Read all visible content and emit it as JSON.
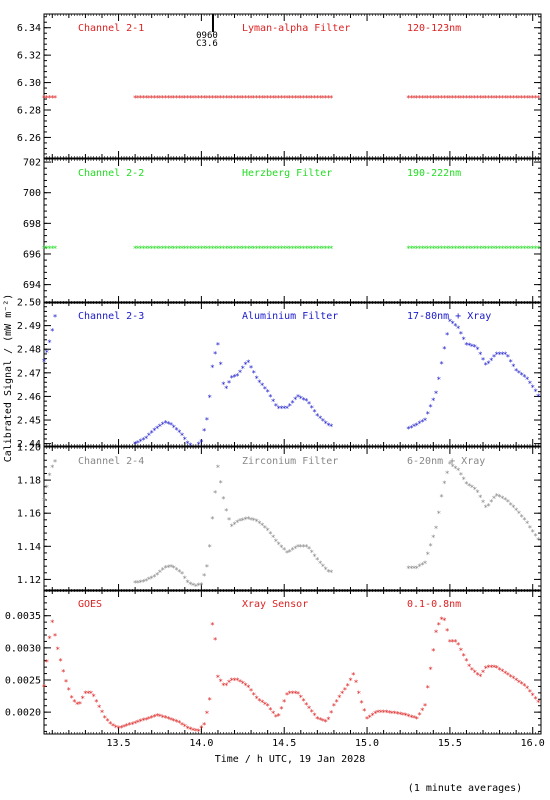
{
  "figure": {
    "ylabel": "Calibrated Signal / (mW m⁻²)",
    "xlabel": "Time / h UTC, 19 Jan 2028",
    "footnote": "(1 minute averages)"
  },
  "flare_marker": {
    "x": 14.07,
    "label_top": "0960",
    "label_bottom": "C3.6"
  },
  "chart_data": [
    {
      "type": "scatter",
      "channel": "Channel 2-1",
      "filter": "Lyman-alpha Filter",
      "band": "120-123nm",
      "color": "#dd2222",
      "xlim": [
        13.05,
        16.05
      ],
      "ylim": [
        6.245,
        6.35
      ],
      "yticks": [
        6.26,
        6.28,
        6.3,
        6.32,
        6.34
      ],
      "ytick_labels": [
        "6.26",
        "6.28",
        "6.30",
        "6.32",
        "6.34"
      ],
      "gaps": [
        [
          13.12,
          13.6
        ],
        [
          14.8,
          15.24
        ]
      ],
      "x": [
        13.05,
        13.12,
        13.6,
        14.8,
        15.24,
        16.05
      ],
      "y": [
        6.289,
        6.289,
        6.289,
        6.289,
        6.289,
        6.289
      ]
    },
    {
      "type": "scatter",
      "channel": "Channel 2-2",
      "filter": "Herzberg Filter",
      "band": "190-222nm",
      "color": "#22dd22",
      "xlim": [
        13.05,
        16.05
      ],
      "ylim": [
        692.8,
        702.2
      ],
      "yticks": [
        694,
        696,
        698,
        700,
        702
      ],
      "ytick_labels": [
        "694",
        "696",
        "698",
        "700",
        "702"
      ],
      "gaps": [
        [
          13.12,
          13.6
        ],
        [
          14.8,
          15.24
        ]
      ],
      "x": [
        13.05,
        13.12,
        13.6,
        14.8,
        15.24,
        16.05
      ],
      "y": [
        696.4,
        696.4,
        696.4,
        696.4,
        696.4,
        696.4
      ]
    },
    {
      "type": "scatter",
      "channel": "Channel 2-3",
      "filter": "Aluminium Filter",
      "band": "17-80nm + Xray",
      "color": "#1a1acc",
      "xlim": [
        13.05,
        16.05
      ],
      "ylim": [
        2.439,
        2.5
      ],
      "yticks": [
        2.44,
        2.45,
        2.46,
        2.47,
        2.48,
        2.49,
        2.5
      ],
      "ytick_labels": [
        "2.44",
        "2.45",
        "2.46",
        "2.47",
        "2.48",
        "2.49",
        "2.50"
      ],
      "gaps": [
        [
          13.12,
          13.6
        ],
        [
          14.8,
          15.24
        ]
      ],
      "x": [
        13.05,
        13.08,
        13.1,
        13.12,
        13.6,
        13.66,
        13.72,
        13.78,
        13.82,
        13.88,
        13.92,
        13.96,
        14.0,
        14.04,
        14.07,
        14.1,
        14.14,
        14.18,
        14.22,
        14.28,
        14.34,
        14.4,
        14.46,
        14.52,
        14.58,
        14.64,
        14.7,
        14.76,
        14.8,
        15.24,
        15.3,
        15.35,
        15.42,
        15.46,
        15.5,
        15.55,
        15.6,
        15.66,
        15.72,
        15.78,
        15.84,
        15.9,
        15.96,
        16.02,
        16.05
      ],
      "y": [
        2.475,
        2.482,
        2.488,
        2.495,
        2.44,
        2.442,
        2.446,
        2.449,
        2.448,
        2.444,
        2.44,
        2.438,
        2.441,
        2.452,
        2.475,
        2.482,
        2.462,
        2.468,
        2.469,
        2.475,
        2.467,
        2.462,
        2.455,
        2.455,
        2.46,
        2.458,
        2.452,
        2.448,
        2.447,
        2.446,
        2.448,
        2.45,
        2.462,
        2.478,
        2.492,
        2.489,
        2.482,
        2.481,
        2.473,
        2.478,
        2.478,
        2.471,
        2.468,
        2.462,
        2.458
      ]
    },
    {
      "type": "scatter",
      "channel": "Channel 2-4",
      "filter": "Zirconium Filter",
      "band": "6-20nm + Xray",
      "color": "#888888",
      "xlim": [
        13.05,
        16.05
      ],
      "ylim": [
        1.113,
        1.2
      ],
      "yticks": [
        1.12,
        1.14,
        1.16,
        1.18,
        1.2
      ],
      "ytick_labels": [
        "1.12",
        "1.14",
        "1.16",
        "1.18",
        "1.20"
      ],
      "gaps": [
        [
          13.12,
          13.6
        ],
        [
          14.8,
          15.24
        ]
      ],
      "x": [
        13.05,
        13.08,
        13.1,
        13.12,
        13.6,
        13.66,
        13.72,
        13.78,
        13.82,
        13.88,
        13.92,
        13.96,
        14.0,
        14.04,
        14.07,
        14.1,
        14.14,
        14.18,
        14.22,
        14.28,
        14.34,
        14.4,
        14.46,
        14.52,
        14.58,
        14.64,
        14.7,
        14.76,
        14.8,
        15.24,
        15.3,
        15.35,
        15.42,
        15.46,
        15.5,
        15.55,
        15.6,
        15.66,
        15.72,
        15.78,
        15.84,
        15.9,
        15.96,
        16.02,
        16.05
      ],
      "y": [
        1.168,
        1.182,
        1.188,
        1.192,
        1.118,
        1.119,
        1.122,
        1.127,
        1.128,
        1.124,
        1.118,
        1.116,
        1.117,
        1.13,
        1.16,
        1.188,
        1.165,
        1.152,
        1.155,
        1.157,
        1.155,
        1.15,
        1.142,
        1.136,
        1.14,
        1.14,
        1.132,
        1.125,
        1.124,
        1.127,
        1.127,
        1.13,
        1.152,
        1.176,
        1.19,
        1.186,
        1.178,
        1.174,
        1.163,
        1.171,
        1.168,
        1.162,
        1.155,
        1.146,
        1.142
      ]
    },
    {
      "type": "scatter",
      "channel": "GOES",
      "filter": "Xray Sensor",
      "band": "0.1-0.8nm",
      "color": "#dd2222",
      "xlim": [
        13.05,
        16.05
      ],
      "ylim": [
        0.00166,
        0.0039
      ],
      "yticks": [
        0.002,
        0.0025,
        0.003,
        0.0035
      ],
      "ytick_labels": [
        "0.0020",
        "0.0025",
        "0.0030",
        "0.0035"
      ],
      "gaps": [],
      "x": [
        13.05,
        13.08,
        13.1,
        13.14,
        13.18,
        13.22,
        13.26,
        13.3,
        13.34,
        13.38,
        13.42,
        13.46,
        13.5,
        13.56,
        13.62,
        13.68,
        13.74,
        13.8,
        13.86,
        13.92,
        13.98,
        14.02,
        14.05,
        14.07,
        14.1,
        14.14,
        14.18,
        14.22,
        14.28,
        14.34,
        14.4,
        14.46,
        14.52,
        14.58,
        14.64,
        14.7,
        14.76,
        14.8,
        14.85,
        14.88,
        14.92,
        14.96,
        15.0,
        15.06,
        15.12,
        15.18,
        15.24,
        15.3,
        15.35,
        15.42,
        15.46,
        15.5,
        15.54,
        15.58,
        15.62,
        15.68,
        15.72,
        15.78,
        15.84,
        15.9,
        15.96,
        16.02,
        16.05
      ],
      "y": [
        0.0024,
        0.0031,
        0.0034,
        0.0029,
        0.0025,
        0.0022,
        0.0021,
        0.0023,
        0.0023,
        0.0021,
        0.0019,
        0.0018,
        0.00175,
        0.0018,
        0.00185,
        0.0019,
        0.00195,
        0.0019,
        0.00185,
        0.00175,
        0.0017,
        0.00182,
        0.0022,
        0.0036,
        0.00255,
        0.0024,
        0.0025,
        0.0025,
        0.0024,
        0.0022,
        0.0021,
        0.0019,
        0.0023,
        0.0023,
        0.0021,
        0.0019,
        0.00185,
        0.0021,
        0.0023,
        0.0024,
        0.0026,
        0.0022,
        0.0019,
        0.002,
        0.002,
        0.00198,
        0.00195,
        0.0019,
        0.0021,
        0.0033,
        0.0035,
        0.0031,
        0.0031,
        0.0029,
        0.0027,
        0.00255,
        0.0027,
        0.0027,
        0.0026,
        0.0025,
        0.0024,
        0.0022,
        0.0021
      ]
    }
  ],
  "xaxis": {
    "xlim": [
      13.05,
      16.05
    ],
    "major_ticks": [
      13.5,
      14.0,
      14.5,
      15.0,
      15.5,
      16.0
    ],
    "tick_labels": [
      "13.5",
      "14.0",
      "14.5",
      "15.0",
      "15.5",
      "16.0"
    ]
  }
}
